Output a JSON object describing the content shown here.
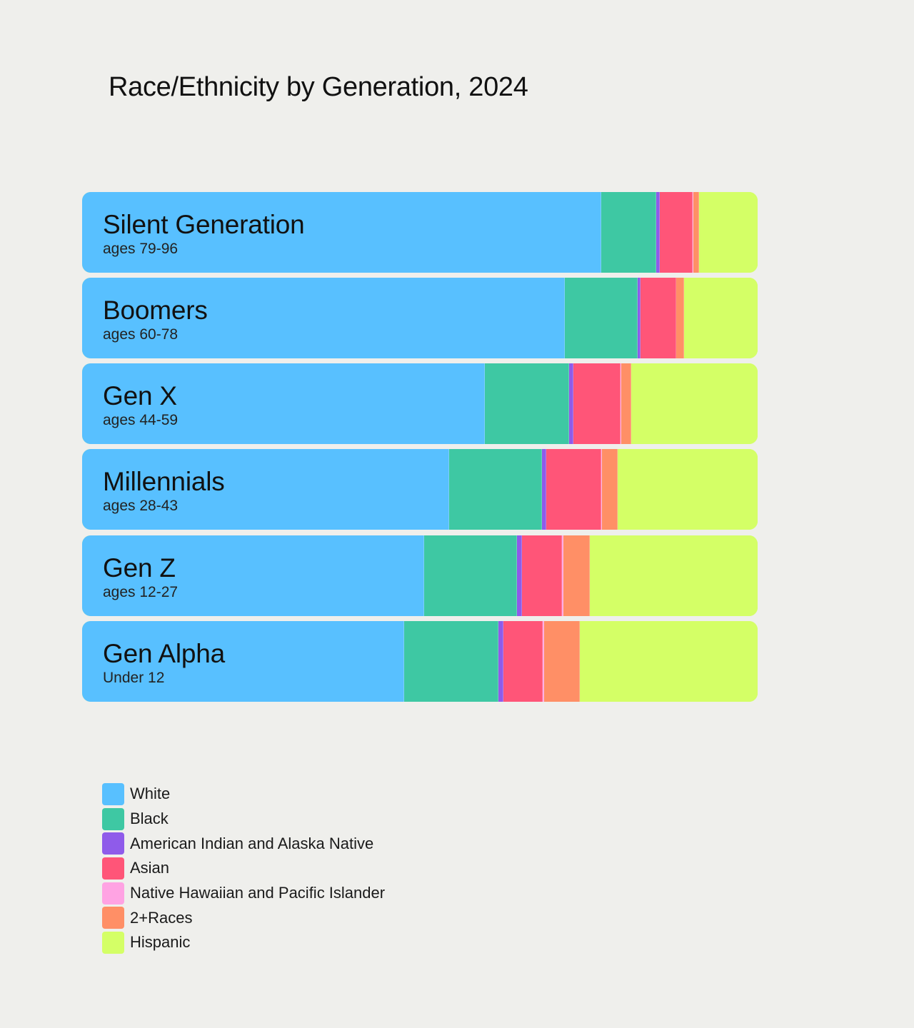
{
  "chart_data": {
    "type": "bar",
    "orientation": "horizontal",
    "stacked": true,
    "normalized_percent": true,
    "title": "Race/Ethnicity by Generation, 2024",
    "categories": [
      {
        "name": "Silent Generation",
        "sublabel": "ages 79-96"
      },
      {
        "name": "Boomers",
        "sublabel": "ages 60-78"
      },
      {
        "name": "Gen X",
        "sublabel": "ages 44-59"
      },
      {
        "name": "Millennials",
        "sublabel": "ages 28-43"
      },
      {
        "name": "Gen Z",
        "sublabel": "ages 12-27"
      },
      {
        "name": "Gen Alpha",
        "sublabel": "Under 12"
      }
    ],
    "series": [
      {
        "name": "White",
        "color": "#58c0ff",
        "values": [
          76.8,
          71.5,
          59.6,
          54.3,
          50.6,
          47.7
        ]
      },
      {
        "name": "Black",
        "color": "#3ec8a3",
        "values": [
          8.2,
          10.7,
          12.5,
          13.8,
          13.8,
          13.9
        ]
      },
      {
        "name": "American Indian and Alaska Native",
        "color": "#8f5bea",
        "values": [
          0.5,
          0.5,
          0.6,
          0.6,
          0.7,
          0.8
        ]
      },
      {
        "name": "Asian",
        "color": "#ff5578",
        "values": [
          4.9,
          5.2,
          7.0,
          8.2,
          5.9,
          5.8
        ]
      },
      {
        "name": "Native Hawaiian and Pacific Islander",
        "color": "#ffa3e3",
        "values": [
          0.1,
          0.1,
          0.1,
          0.1,
          0.2,
          0.2
        ]
      },
      {
        "name": "2+Races",
        "color": "#ff8f66",
        "values": [
          0.8,
          1.1,
          1.5,
          2.3,
          4.0,
          5.3
        ]
      },
      {
        "name": "Hispanic",
        "color": "#d4ff66",
        "values": [
          8.7,
          10.9,
          18.7,
          20.7,
          24.8,
          26.3
        ]
      }
    ],
    "xlim": [
      0,
      100
    ],
    "grid": false,
    "legend": {
      "placement": "bottom-left"
    }
  }
}
